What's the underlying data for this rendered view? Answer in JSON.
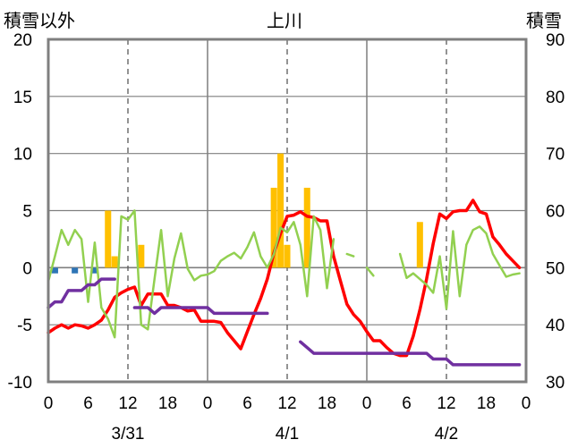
{
  "chart_data": {
    "type": "bar+line",
    "title": "上川",
    "left_axis_label": "積雪以外",
    "right_axis_label": "積雪",
    "y_left": {
      "min": -10,
      "max": 20,
      "ticks": [
        "-10",
        "-5",
        "0",
        "5",
        "10",
        "15",
        "20"
      ]
    },
    "y_right": {
      "min": 30,
      "max": 90,
      "ticks": [
        "30",
        "40",
        "50",
        "60",
        "70",
        "80",
        "90"
      ]
    },
    "x_hours": {
      "min": 0,
      "max": 72
    },
    "x_tick_labels": [
      "0",
      "12",
      "18",
      "0",
      "6",
      "12",
      "18",
      "0",
      "6",
      "12",
      "18",
      "0"
    ],
    "x_tick_hours": [
      0,
      12,
      18,
      24,
      30,
      36,
      42,
      48,
      54,
      60,
      66,
      72
    ],
    "x_first_tick_label": "6",
    "x_first_tick_hour": 6,
    "date_labels": [
      {
        "text": "3/31",
        "hour": 12
      },
      {
        "text": "4/1",
        "hour": 36
      },
      {
        "text": "4/2",
        "hour": 60
      }
    ],
    "dashed_gridlines_hours": [
      12,
      36,
      60
    ],
    "solid_day_dividers_hours": [
      24,
      48
    ],
    "series": [
      {
        "name": "precipitation",
        "kind": "bar",
        "color": "#FFC000",
        "axis": "left",
        "points": [
          [
            9,
            5.0
          ],
          [
            10,
            1.0
          ],
          [
            14,
            2.0
          ],
          [
            34,
            7.0
          ],
          [
            35,
            10.0
          ],
          [
            36,
            2.0
          ],
          [
            39,
            7.0
          ],
          [
            56,
            4.0
          ]
        ]
      },
      {
        "name": "snowfall",
        "kind": "bar",
        "color": "#2E75B6",
        "axis": "left",
        "points": [
          [
            1,
            -0.5
          ],
          [
            4,
            -0.5
          ],
          [
            7,
            -0.5
          ]
        ]
      },
      {
        "name": "temperature",
        "kind": "line",
        "color": "#FF0000",
        "axis": "left",
        "points": [
          [
            0,
            -5.7
          ],
          [
            1,
            -5.3
          ],
          [
            2,
            -5.0
          ],
          [
            3,
            -5.3
          ],
          [
            4,
            -5.0
          ],
          [
            5,
            -5.1
          ],
          [
            6,
            -5.3
          ],
          [
            7,
            -5.0
          ],
          [
            8,
            -4.6
          ],
          [
            9,
            -3.7
          ],
          [
            10,
            -2.6
          ],
          [
            11,
            -2.2
          ],
          [
            12,
            -1.9
          ],
          [
            13,
            -1.7
          ],
          [
            14,
            -3.3
          ],
          [
            15,
            -2.3
          ],
          [
            16,
            -2.3
          ],
          [
            17,
            -2.3
          ],
          [
            18,
            -3.3
          ],
          [
            19,
            -3.3
          ],
          [
            20,
            -3.5
          ],
          [
            21,
            -3.8
          ],
          [
            22,
            -3.7
          ],
          [
            23,
            -4.7
          ],
          [
            24,
            -4.7
          ],
          [
            25,
            -4.7
          ],
          [
            26,
            -4.8
          ],
          [
            27,
            -5.7
          ],
          [
            28,
            -6.4
          ],
          [
            29,
            -7.1
          ],
          [
            30,
            -5.6
          ],
          [
            31,
            -4.1
          ],
          [
            32,
            -2.7
          ],
          [
            33,
            -1.0
          ],
          [
            34,
            1.3
          ],
          [
            35,
            3.0
          ],
          [
            36,
            4.5
          ],
          [
            37,
            4.6
          ],
          [
            38,
            4.9
          ],
          [
            39,
            4.5
          ],
          [
            40,
            4.4
          ],
          [
            41,
            4.1
          ],
          [
            42,
            4.1
          ],
          [
            43,
            1.0
          ],
          [
            44,
            -1.1
          ],
          [
            45,
            -3.2
          ],
          [
            46,
            -4.1
          ],
          [
            47,
            -4.7
          ],
          [
            48,
            -5.6
          ],
          [
            49,
            -6.4
          ],
          [
            50,
            -6.4
          ],
          [
            51,
            -7.0
          ],
          [
            52,
            -7.5
          ],
          [
            53,
            -7.7
          ],
          [
            54,
            -7.7
          ],
          [
            55,
            -6.0
          ],
          [
            56,
            -3.7
          ],
          [
            57,
            -1.0
          ],
          [
            58,
            2.1
          ],
          [
            59,
            4.7
          ],
          [
            60,
            4.3
          ],
          [
            61,
            4.9
          ],
          [
            62,
            5.0
          ],
          [
            63,
            5.0
          ],
          [
            64,
            5.9
          ],
          [
            65,
            4.9
          ],
          [
            66,
            4.7
          ],
          [
            67,
            2.7
          ],
          [
            68,
            2.0
          ],
          [
            69,
            1.2
          ],
          [
            70,
            0.6
          ],
          [
            71,
            0.0
          ]
        ]
      },
      {
        "name": "wind",
        "kind": "line",
        "color": "#92D050",
        "axis": "left",
        "points": [
          [
            0,
            -1.2
          ],
          [
            1,
            1.0
          ],
          [
            2,
            3.3
          ],
          [
            3,
            2.0
          ],
          [
            4,
            3.3
          ],
          [
            5,
            2.5
          ],
          [
            6,
            -3.0
          ],
          [
            7,
            2.2
          ],
          [
            8,
            -3.5
          ],
          [
            9,
            -4.5
          ],
          [
            10,
            -6.1
          ],
          [
            11,
            4.5
          ],
          [
            12,
            4.2
          ],
          [
            13,
            5.0
          ],
          [
            14,
            -5.0
          ],
          [
            15,
            -5.4
          ],
          [
            16,
            -1.0
          ],
          [
            17,
            3.3
          ],
          [
            18,
            -2.5
          ],
          [
            19,
            0.8
          ],
          [
            20,
            3.0
          ],
          [
            21,
            -0.1
          ],
          [
            22,
            -1.1
          ],
          [
            23,
            -0.7
          ],
          [
            24,
            -0.6
          ],
          [
            25,
            -0.3
          ],
          [
            26,
            0.6
          ],
          [
            27,
            1.0
          ],
          [
            28,
            1.3
          ],
          [
            29,
            0.8
          ],
          [
            30,
            1.8
          ],
          [
            31,
            3.1
          ],
          [
            32,
            1.0
          ],
          [
            33,
            0.0
          ],
          [
            34,
            1.2
          ],
          [
            35,
            3.5
          ],
          [
            36,
            3.1
          ],
          [
            37,
            4.0
          ],
          [
            38,
            2.0
          ],
          [
            39,
            -2.5
          ],
          [
            40,
            4.5
          ],
          [
            41,
            3.3
          ],
          [
            42,
            -1.8
          ],
          [
            43,
            2.5
          ]
        ]
      },
      {
        "name": "wind_segment_2",
        "kind": "line",
        "color": "#92D050",
        "axis": "left",
        "points": [
          [
            45,
            1.2
          ],
          [
            46,
            1.0
          ]
        ]
      },
      {
        "name": "wind_segment_3",
        "kind": "line",
        "color": "#92D050",
        "axis": "left",
        "points": [
          [
            48,
            0.0
          ],
          [
            49,
            -0.7
          ]
        ]
      },
      {
        "name": "wind_segment_4",
        "kind": "line",
        "color": "#92D050",
        "axis": "left",
        "points": [
          [
            53,
            1.2
          ],
          [
            54,
            -0.9
          ],
          [
            55,
            -0.5
          ],
          [
            56,
            -1.0
          ],
          [
            57,
            -1.5
          ],
          [
            58,
            -2.2
          ],
          [
            59,
            1.0
          ],
          [
            60,
            -3.6
          ],
          [
            61,
            3.2
          ],
          [
            62,
            -2.5
          ],
          [
            63,
            2.0
          ],
          [
            64,
            3.3
          ],
          [
            65,
            3.6
          ],
          [
            66,
            3.0
          ],
          [
            67,
            1.2
          ],
          [
            68,
            0.2
          ],
          [
            69,
            -0.8
          ],
          [
            70,
            -0.6
          ],
          [
            71,
            -0.5
          ]
        ]
      },
      {
        "name": "snow_depth",
        "kind": "line",
        "color": "#7030A0",
        "axis": "right",
        "segments": [
          [
            [
              0,
              43
            ],
            [
              1,
              44
            ],
            [
              2,
              44
            ],
            [
              3,
              46
            ],
            [
              4,
              46
            ],
            [
              5,
              46
            ],
            [
              6,
              47
            ],
            [
              7,
              47
            ],
            [
              8,
              48
            ],
            [
              9,
              48
            ],
            [
              10,
              48
            ]
          ],
          [
            [
              13,
              43
            ],
            [
              14,
              43
            ],
            [
              15,
              43
            ],
            [
              16,
              42
            ],
            [
              17,
              43
            ],
            [
              18,
              43
            ],
            [
              19,
              43
            ],
            [
              20,
              43
            ],
            [
              21,
              43
            ],
            [
              22,
              43
            ],
            [
              23,
              43
            ],
            [
              24,
              43
            ],
            [
              25,
              42
            ],
            [
              26,
              42
            ],
            [
              27,
              42
            ],
            [
              28,
              42
            ],
            [
              29,
              42
            ],
            [
              30,
              42
            ],
            [
              31,
              42
            ],
            [
              32,
              42
            ],
            [
              33,
              42
            ]
          ],
          [
            [
              38,
              37
            ],
            [
              39,
              36
            ],
            [
              40,
              35
            ],
            [
              41,
              35
            ],
            [
              42,
              35
            ],
            [
              43,
              35
            ],
            [
              44,
              35
            ],
            [
              45,
              35
            ],
            [
              46,
              35
            ],
            [
              47,
              35
            ],
            [
              48,
              35
            ],
            [
              49,
              35
            ],
            [
              50,
              35
            ],
            [
              51,
              35
            ],
            [
              52,
              35
            ],
            [
              53,
              35
            ],
            [
              54,
              35
            ],
            [
              55,
              35
            ],
            [
              56,
              35
            ],
            [
              57,
              35
            ],
            [
              58,
              34
            ],
            [
              59,
              34
            ],
            [
              60,
              34
            ],
            [
              61,
              33
            ],
            [
              62,
              33
            ],
            [
              63,
              33
            ],
            [
              64,
              33
            ],
            [
              65,
              33
            ],
            [
              66,
              33
            ],
            [
              67,
              33
            ],
            [
              68,
              33
            ],
            [
              69,
              33
            ],
            [
              70,
              33
            ],
            [
              71,
              33
            ]
          ]
        ]
      }
    ]
  }
}
